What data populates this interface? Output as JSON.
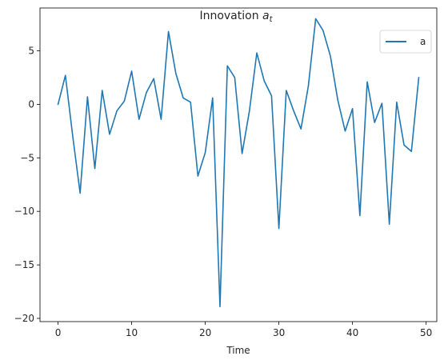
{
  "chart_data": {
    "type": "line",
    "title": "Innovation",
    "title_subscript": "t",
    "title_symbol": "a",
    "xlabel": "Time",
    "ylabel": "",
    "xlim": [
      -2.45,
      51.45
    ],
    "ylim": [
      -20.3,
      9.0
    ],
    "xticks": [
      0,
      10,
      20,
      30,
      40,
      50
    ],
    "yticks": [
      -20,
      -15,
      -10,
      -5,
      0,
      5
    ],
    "grid": false,
    "legend_position": "top-right",
    "colors": {
      "series": "#1f77b4",
      "axes": "#000000",
      "text": "#262626"
    },
    "series": [
      {
        "name": "a",
        "x": [
          0,
          1,
          2,
          3,
          4,
          5,
          6,
          7,
          8,
          9,
          10,
          11,
          12,
          13,
          14,
          15,
          16,
          17,
          18,
          19,
          20,
          21,
          22,
          23,
          24,
          25,
          26,
          27,
          28,
          29,
          30,
          31,
          32,
          33,
          34,
          35,
          36,
          37,
          38,
          39,
          40,
          41,
          42,
          43,
          44,
          45,
          46,
          47,
          48,
          49
        ],
        "values": [
          0.0,
          2.7,
          -3.0,
          -8.3,
          0.7,
          -6.0,
          1.3,
          -2.8,
          -0.6,
          0.3,
          3.1,
          -1.4,
          1.1,
          2.4,
          -1.4,
          6.8,
          2.9,
          0.6,
          0.2,
          -6.7,
          -4.5,
          0.6,
          -18.9,
          3.6,
          2.5,
          -4.6,
          -0.6,
          4.8,
          2.2,
          0.8,
          -11.6,
          1.3,
          -0.6,
          -2.3,
          1.7,
          8.0,
          6.9,
          4.5,
          0.4,
          -2.5,
          -0.4,
          -10.4,
          2.1,
          -1.7,
          0.1,
          -11.2,
          0.2,
          -3.8,
          -4.4,
          2.5
        ]
      }
    ]
  }
}
